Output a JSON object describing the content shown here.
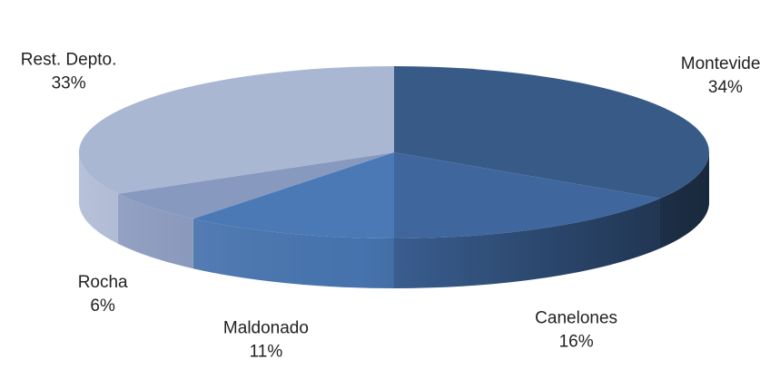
{
  "chart_data": {
    "type": "pie",
    "categories": [
      "Montevideo",
      "Canelones",
      "Maldonado",
      "Rocha",
      "Rest. Depto."
    ],
    "values": [
      34,
      16,
      11,
      6,
      33
    ],
    "value_labels": [
      "34%",
      "16%",
      "11%",
      "6%",
      "33%"
    ],
    "colors": [
      "#375a87",
      "#3f679e",
      "#4a79b6",
      "#8899c0",
      "#aab7d3"
    ]
  }
}
